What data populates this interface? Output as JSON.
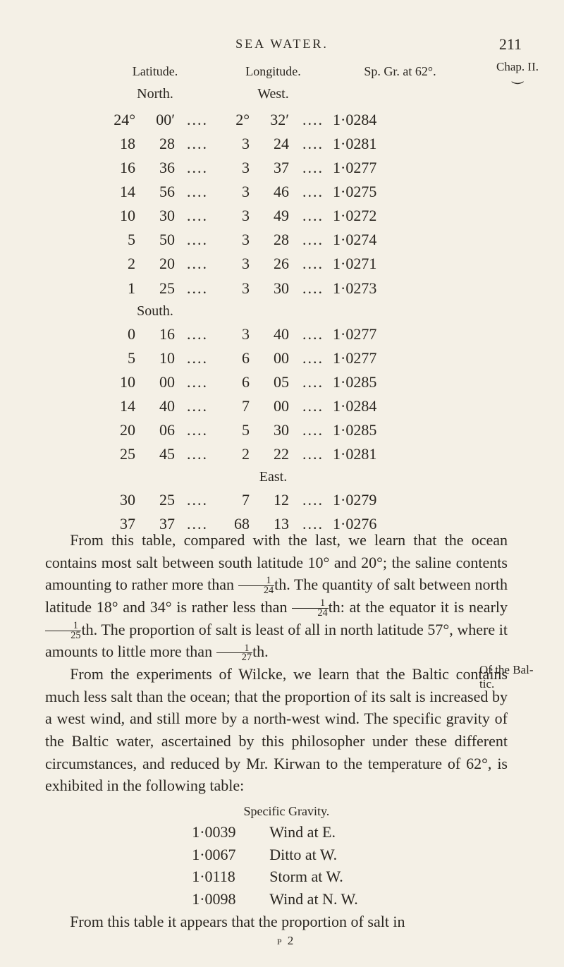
{
  "colors": {
    "bg": "#f4f0e6",
    "ink": "#2a2620"
  },
  "typography": {
    "body_fontsize_pt": 22,
    "small_fontsize_pt": 18,
    "line_height": 1.44
  },
  "header": {
    "running": "SEA WATER.",
    "page_number": "211",
    "chapter": "Chap. II."
  },
  "table": {
    "col_headers": {
      "lat": "Latitude.",
      "lon": "Longitude.",
      "sp": "Sp. Gr. at 62°."
    },
    "sub_headers": {
      "lat": "North.",
      "lon": "West."
    },
    "groups": [
      {
        "lat_label": "",
        "rows": [
          {
            "d1": "24°",
            "m1": "00′",
            "d2": "2°",
            "m2": "32′",
            "sp": "1·0284"
          },
          {
            "d1": "18",
            "m1": "28",
            "d2": "3",
            "m2": "24",
            "sp": "1·0281"
          },
          {
            "d1": "16",
            "m1": "36",
            "d2": "3",
            "m2": "37",
            "sp": "1·0277"
          },
          {
            "d1": "14",
            "m1": "56",
            "d2": "3",
            "m2": "46",
            "sp": "1·0275"
          },
          {
            "d1": "10",
            "m1": "30",
            "d2": "3",
            "m2": "49",
            "sp": "1·0272"
          },
          {
            "d1": "5",
            "m1": "50",
            "d2": "3",
            "m2": "28",
            "sp": "1·0274"
          },
          {
            "d1": "2",
            "m1": "20",
            "d2": "3",
            "m2": "26",
            "sp": "1·0271"
          },
          {
            "d1": "1",
            "m1": "25",
            "d2": "3",
            "m2": "30",
            "sp": "1·0273"
          }
        ]
      },
      {
        "lat_label": "South.",
        "rows": [
          {
            "d1": "0",
            "m1": "16",
            "d2": "3",
            "m2": "40",
            "sp": "1·0277"
          },
          {
            "d1": "5",
            "m1": "10",
            "d2": "6",
            "m2": "00",
            "sp": "1·0277"
          },
          {
            "d1": "10",
            "m1": "00",
            "d2": "6",
            "m2": "05",
            "sp": "1·0285"
          },
          {
            "d1": "14",
            "m1": "40",
            "d2": "7",
            "m2": "00",
            "sp": "1·0284"
          },
          {
            "d1": "20",
            "m1": "06",
            "d2": "5",
            "m2": "30",
            "sp": "1·0285"
          },
          {
            "d1": "25",
            "m1": "45",
            "d2": "2",
            "m2": "22",
            "sp": "1·0281"
          }
        ]
      },
      {
        "lon_label": "East.",
        "rows": [
          {
            "d1": "30",
            "m1": "25",
            "d2": "7",
            "m2": "12",
            "sp": "1·0279"
          },
          {
            "d1": "37",
            "m1": "37",
            "d2": "68",
            "m2": "13",
            "sp": "1·0276"
          }
        ]
      }
    ],
    "dots": "...."
  },
  "paragraphs": {
    "p1a": "From this table, compared with the last, we learn that the ocean contains most salt between south latitude 10° and 20°; the saline contents amounting to rather more than ",
    "p1b": "th. The quantity of salt between north latitude 18° and 34° is rather less than ",
    "p1c": "th: at the equator it is nearly ",
    "p1d": "th. The proportion of salt is least of all in north latitude 57°, where it amounts to little more than ",
    "p1e": "th.",
    "frac24n": "1",
    "frac24d": "24",
    "frac25n": "1",
    "frac25d": "25",
    "frac27n": "1",
    "frac27d": "27",
    "p2a": "From the experiments of Wilcke, we learn that the Baltic contains much less salt than the ocean; that the proportion of its salt is increased by a west wind, and still more by a north-west wind. The specific gravity of the Baltic water, ascertained by this philosopher under these different circumstances, and reduced by Mr. Kirwan to the temperature of 62°, is exhibited in the following table:",
    "p3": "From this table it appears that the proportion of salt in"
  },
  "margin_note_line1": "Of the Bal-",
  "margin_note_line2": "tic.",
  "specific": {
    "head": "Specific Gravity.",
    "rows": [
      {
        "sg": "1·0039",
        "wd": "Wind at E."
      },
      {
        "sg": "1·0067",
        "wd": "Ditto at W."
      },
      {
        "sg": "1·0118",
        "wd": "Storm at W."
      },
      {
        "sg": "1·0098",
        "wd": "Wind at N. W."
      }
    ]
  },
  "signature": "p 2"
}
